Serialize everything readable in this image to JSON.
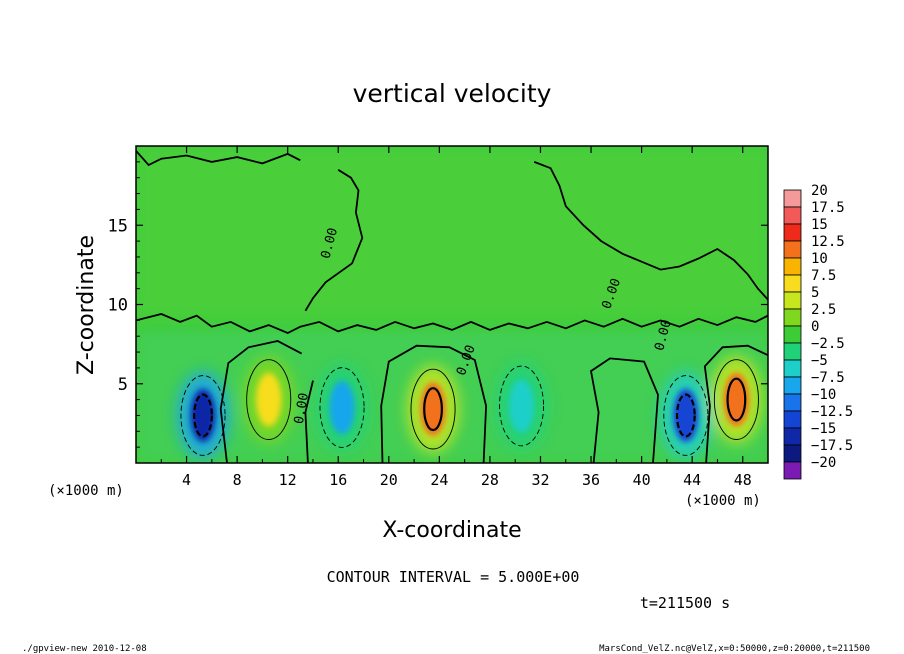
{
  "chart_data": {
    "type": "heatmap",
    "title": "vertical velocity",
    "xlabel": "X-coordinate",
    "ylabel": "Z-coordinate",
    "x_unit": "(×1000 m)",
    "y_unit": "(×1000 m)",
    "xlim": [
      0,
      50
    ],
    "ylim": [
      0,
      20
    ],
    "x_ticks": [
      "4",
      "8",
      "12",
      "16",
      "20",
      "24",
      "28",
      "32",
      "36",
      "40",
      "44",
      "48"
    ],
    "y_ticks": [
      "5",
      "10",
      "15"
    ],
    "contour_interval_text": "CONTOUR INTERVAL = 5.000E+00",
    "contour_labels": [
      "0.00",
      "0.00",
      "0.00",
      "0.00",
      "0.00"
    ],
    "time_text": "t=211500 s",
    "colorbar_labels": [
      "20",
      "17.5",
      "15",
      "12.5",
      "10",
      "7.5",
      "5",
      "2.5",
      "0",
      "−2.5",
      "−5",
      "−7.5",
      "−10",
      "−12.5",
      "−15",
      "−17.5",
      "−20"
    ],
    "colorbar_colors": [
      "#f59a9a",
      "#f25a5a",
      "#ee2a1a",
      "#f2711a",
      "#f8b400",
      "#f7dd1e",
      "#c8e61e",
      "#7fd81e",
      "#3ccc36",
      "#1fd27a",
      "#1ccfc8",
      "#18a6ec",
      "#1874ea",
      "#1444d4",
      "#1028a8",
      "#0c1a80",
      "#7a1cb4"
    ],
    "features": [
      {
        "x": 5.3,
        "z": 3.0,
        "value": -15,
        "type": "downdraft"
      },
      {
        "x": 10.5,
        "z": 4.0,
        "value": 7,
        "type": "updraft"
      },
      {
        "x": 16.3,
        "z": 3.5,
        "value": -8,
        "type": "downdraft"
      },
      {
        "x": 23.5,
        "z": 3.4,
        "value": 12,
        "type": "updraft"
      },
      {
        "x": 30.5,
        "z": 3.6,
        "value": -5,
        "type": "downdraft"
      },
      {
        "x": 43.5,
        "z": 3.0,
        "value": -13,
        "type": "downdraft"
      },
      {
        "x": 47.5,
        "z": 4.0,
        "value": 13,
        "type": "updraft"
      }
    ]
  },
  "footer": {
    "left": "./gpview-new  2010-12-08",
    "right": "MarsCond_VelZ.nc@VelZ,x=0:50000,z=0:20000,t=211500"
  }
}
